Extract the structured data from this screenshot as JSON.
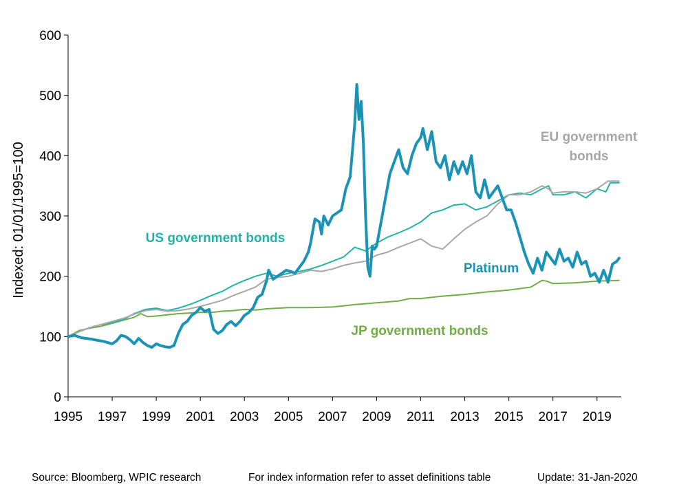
{
  "chart_data": {
    "type": "line",
    "title": "",
    "xlabel": "",
    "ylabel": "Indexed: 01/01/1995=100",
    "xlim": [
      1995,
      2020.1
    ],
    "ylim": [
      0,
      600
    ],
    "y_ticks": [
      0,
      100,
      200,
      300,
      400,
      500,
      600
    ],
    "x_ticks": [
      1995,
      1997,
      1999,
      2001,
      2003,
      2005,
      2007,
      2009,
      2011,
      2013,
      2015,
      2017,
      2019
    ],
    "grid": false,
    "series": [
      {
        "name": "JP government bonds",
        "color": "#70ad47",
        "x": [
          1995.0,
          1995.5,
          1996.0,
          1996.5,
          1997.0,
          1997.5,
          1998.0,
          1998.3,
          1998.6,
          1999.0,
          1999.5,
          2000.0,
          2000.5,
          2001.0,
          2001.5,
          2002.0,
          2002.5,
          2003.0,
          2003.5,
          2004.0,
          2005.0,
          2006.0,
          2007.0,
          2008.0,
          2009.0,
          2010.0,
          2010.5,
          2011.0,
          2012.0,
          2013.0,
          2014.0,
          2015.0,
          2016.0,
          2016.5,
          2016.7,
          2017.0,
          2018.0,
          2019.0,
          2020.0
        ],
        "values": [
          100,
          110,
          114,
          117,
          122,
          127,
          132,
          138,
          133,
          134,
          136,
          138,
          139,
          140,
          140,
          142,
          143,
          145,
          144,
          146,
          148,
          148,
          149,
          153,
          156,
          159,
          163,
          163,
          167,
          170,
          174,
          177,
          182,
          193,
          192,
          188,
          189,
          192,
          193
        ]
      },
      {
        "name": "US government bonds",
        "color": "#1fb3a9",
        "x": [
          1995.0,
          1995.5,
          1996.0,
          1996.5,
          1997.0,
          1997.5,
          1998.0,
          1998.5,
          1999.0,
          1999.5,
          2000.0,
          2000.5,
          2001.0,
          2001.5,
          2002.0,
          2002.5,
          2003.0,
          2003.5,
          2004.0,
          2004.5,
          2005.0,
          2005.5,
          2006.0,
          2006.5,
          2007.0,
          2007.5,
          2008.0,
          2008.5,
          2009.0,
          2009.5,
          2010.0,
          2010.5,
          2011.0,
          2011.5,
          2012.0,
          2012.5,
          2013.0,
          2013.5,
          2014.0,
          2014.5,
          2015.0,
          2015.5,
          2016.0,
          2016.5,
          2016.8,
          2017.0,
          2017.5,
          2018.0,
          2018.5,
          2019.0,
          2019.4,
          2019.6,
          2020.0
        ],
        "values": [
          100,
          108,
          115,
          120,
          123,
          128,
          138,
          145,
          147,
          143,
          147,
          153,
          160,
          168,
          175,
          185,
          193,
          200,
          205,
          200,
          205,
          208,
          212,
          218,
          225,
          232,
          248,
          242,
          255,
          265,
          272,
          280,
          290,
          305,
          310,
          318,
          320,
          310,
          315,
          325,
          335,
          338,
          335,
          345,
          350,
          335,
          335,
          340,
          330,
          345,
          340,
          355,
          355
        ]
      },
      {
        "name": "EU government bonds",
        "color": "#a6a6a6",
        "x": [
          1995.0,
          1995.5,
          1996.0,
          1996.5,
          1997.0,
          1997.5,
          1998.0,
          1998.5,
          1999.0,
          1999.5,
          2000.0,
          2000.5,
          2001.0,
          2001.5,
          2002.0,
          2002.5,
          2003.0,
          2003.5,
          2004.0,
          2004.5,
          2005.0,
          2005.5,
          2006.0,
          2006.5,
          2007.0,
          2007.5,
          2008.0,
          2008.5,
          2009.0,
          2009.5,
          2010.0,
          2010.5,
          2011.0,
          2011.5,
          2012.0,
          2012.5,
          2013.0,
          2013.5,
          2014.0,
          2014.5,
          2015.0,
          2015.5,
          2016.0,
          2016.5,
          2016.8,
          2017.0,
          2017.5,
          2018.0,
          2018.5,
          2019.0,
          2019.5,
          2020.0
        ],
        "values": [
          100,
          108,
          115,
          120,
          125,
          130,
          137,
          143,
          145,
          142,
          143,
          146,
          150,
          155,
          160,
          168,
          175,
          182,
          195,
          198,
          200,
          205,
          210,
          208,
          212,
          218,
          222,
          225,
          235,
          240,
          248,
          255,
          262,
          250,
          245,
          262,
          278,
          290,
          300,
          320,
          335,
          335,
          340,
          350,
          345,
          338,
          340,
          340,
          338,
          345,
          358,
          358
        ]
      },
      {
        "name": "Platinum",
        "color": "#1b93b7",
        "x": [
          1995.0,
          1995.3,
          1995.6,
          1996.0,
          1996.3,
          1996.6,
          1997.0,
          1997.2,
          1997.4,
          1997.6,
          1997.8,
          1998.0,
          1998.2,
          1998.4,
          1998.6,
          1998.8,
          1999.0,
          1999.2,
          1999.4,
          1999.6,
          1999.8,
          2000.0,
          2000.2,
          2000.4,
          2000.6,
          2000.8,
          2001.0,
          2001.2,
          2001.4,
          2001.6,
          2001.8,
          2002.0,
          2002.2,
          2002.4,
          2002.6,
          2002.8,
          2003.0,
          2003.2,
          2003.4,
          2003.6,
          2003.8,
          2004.0,
          2004.1,
          2004.3,
          2004.5,
          2004.7,
          2004.9,
          2005.1,
          2005.3,
          2005.5,
          2005.7,
          2005.9,
          2006.0,
          2006.2,
          2006.4,
          2006.5,
          2006.6,
          2006.8,
          2007.0,
          2007.2,
          2007.4,
          2007.6,
          2007.8,
          2008.0,
          2008.1,
          2008.2,
          2008.3,
          2008.4,
          2008.5,
          2008.6,
          2008.7,
          2008.8,
          2008.9,
          2009.0,
          2009.2,
          2009.4,
          2009.6,
          2009.8,
          2010.0,
          2010.2,
          2010.4,
          2010.6,
          2010.8,
          2011.0,
          2011.1,
          2011.3,
          2011.5,
          2011.7,
          2011.9,
          2012.1,
          2012.3,
          2012.5,
          2012.7,
          2012.9,
          2013.1,
          2013.3,
          2013.5,
          2013.7,
          2013.9,
          2014.1,
          2014.3,
          2014.5,
          2014.7,
          2014.9,
          2015.1,
          2015.3,
          2015.5,
          2015.7,
          2015.9,
          2016.1,
          2016.3,
          2016.5,
          2016.7,
          2016.9,
          2017.1,
          2017.3,
          2017.5,
          2017.7,
          2017.9,
          2018.1,
          2018.3,
          2018.5,
          2018.7,
          2018.9,
          2019.1,
          2019.3,
          2019.5,
          2019.7,
          2019.9,
          2020.0
        ],
        "values": [
          100,
          102,
          98,
          96,
          94,
          92,
          88,
          93,
          102,
          100,
          95,
          88,
          97,
          90,
          85,
          82,
          88,
          85,
          83,
          82,
          85,
          105,
          120,
          125,
          135,
          140,
          148,
          142,
          145,
          112,
          105,
          110,
          120,
          125,
          118,
          125,
          135,
          140,
          148,
          165,
          170,
          192,
          210,
          195,
          200,
          205,
          210,
          208,
          205,
          215,
          225,
          240,
          255,
          295,
          290,
          270,
          300,
          285,
          300,
          305,
          310,
          345,
          365,
          450,
          518,
          460,
          490,
          420,
          300,
          215,
          200,
          250,
          245,
          250,
          290,
          330,
          370,
          390,
          410,
          380,
          370,
          400,
          420,
          430,
          445,
          410,
          440,
          390,
          380,
          400,
          360,
          390,
          370,
          390,
          370,
          400,
          340,
          330,
          360,
          330,
          340,
          350,
          330,
          310,
          310,
          290,
          265,
          240,
          220,
          205,
          230,
          210,
          240,
          230,
          220,
          245,
          225,
          230,
          215,
          240,
          220,
          225,
          200,
          205,
          190,
          210,
          190,
          220,
          225,
          230
        ]
      }
    ],
    "annotations": [
      {
        "text": "EU government bonds",
        "lines": [
          "EU government",
          "bonds"
        ],
        "color": "#a6a6a6"
      },
      {
        "text": "US government bonds",
        "lines": [
          "US government bonds"
        ],
        "color": "#1fb3a9"
      },
      {
        "text": "Platinum",
        "lines": [
          "Platinum"
        ],
        "color": "#1b93b7"
      },
      {
        "text": "JP government bonds",
        "lines": [
          "JP government bonds"
        ],
        "color": "#70ad47"
      }
    ]
  },
  "footer": {
    "source": "Source: Bloomberg, WPIC research",
    "note": "For index information refer to asset definitions table",
    "update": "Update: 31-Jan-2020"
  }
}
